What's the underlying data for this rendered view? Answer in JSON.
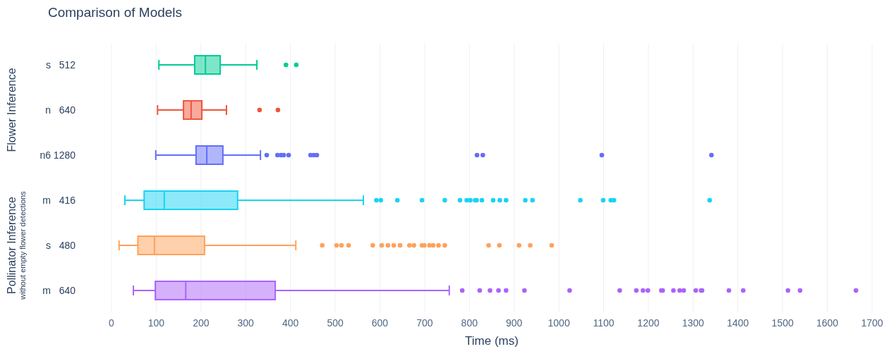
{
  "chart_data": {
    "type": "box",
    "title": "Comparison of Models",
    "xlabel": "Time (ms)",
    "orientation": "horizontal",
    "categories": [
      "s   512",
      "n   640",
      "n6 1280",
      "m   416",
      "s   480",
      "m   640"
    ],
    "colors": [
      "#00cc96",
      "#ef553b",
      "#636efa",
      "#19d3f3",
      "#ffa15a",
      "#ab63fa"
    ],
    "boxes": [
      {
        "low": 106,
        "q1": 186,
        "median": 210,
        "q3": 243,
        "high": 325,
        "outliers": [
          390,
          413
        ]
      },
      {
        "low": 103,
        "q1": 161,
        "median": 178,
        "q3": 202,
        "high": 257,
        "outliers": [
          331,
          372
        ]
      },
      {
        "low": 99,
        "q1": 189,
        "median": 213,
        "q3": 249,
        "high": 333,
        "outliers": [
          347,
          371,
          379,
          385,
          396,
          445,
          452,
          459,
          817,
          830,
          1096,
          1341
        ]
      },
      {
        "low": 30,
        "q1": 73,
        "median": 118,
        "q3": 282,
        "high": 563,
        "outliers": [
          592,
          602,
          639,
          694,
          745,
          779,
          794,
          802,
          813,
          816,
          828,
          853,
          868,
          882,
          925,
          941,
          1048,
          1099,
          1116,
          1123,
          1337
        ]
      },
      {
        "low": 17,
        "q1": 59,
        "median": 96,
        "q3": 208,
        "high": 412,
        "outliers": [
          471,
          503,
          514,
          530,
          584,
          604,
          618,
          631,
          645,
          666,
          676,
          694,
          699,
          711,
          719,
          731,
          745,
          843,
          867,
          911,
          936,
          984
        ]
      },
      {
        "low": 49,
        "q1": 98,
        "median": 166,
        "q3": 366,
        "high": 755,
        "outliers": [
          784,
          823,
          846,
          865,
          882,
          923,
          1024,
          1136,
          1173,
          1188,
          1199,
          1229,
          1232,
          1256,
          1270,
          1279,
          1306,
          1318,
          1320,
          1380,
          1412,
          1512,
          1539,
          1664
        ]
      }
    ],
    "xlim": [
      0,
      1700
    ],
    "xticks": [
      0,
      100,
      200,
      300,
      400,
      500,
      600,
      700,
      800,
      900,
      1000,
      1100,
      1200,
      1300,
      1400,
      1500,
      1600,
      1700
    ],
    "grid": "x",
    "marker": "circle",
    "annotations": [
      "Flower Inference",
      "Pollinator Inference",
      "without empty flower detections"
    ]
  }
}
